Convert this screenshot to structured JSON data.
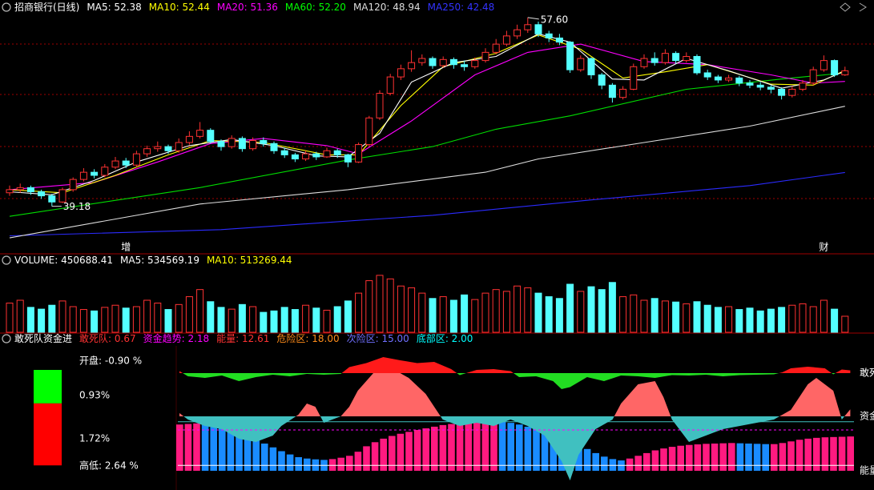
{
  "chart_data": [
    {
      "type": "candlestick",
      "header": [
        {
          "text": "招商银行(日线)",
          "color": "#ffffff"
        },
        {
          "text": "MA5: 52.38",
          "color": "#ffffff"
        },
        {
          "text": "MA10: 52.44",
          "color": "#ffff00"
        },
        {
          "text": "MA20: 51.36",
          "color": "#ff00ff"
        },
        {
          "text": "MA60: 52.20",
          "color": "#00ff00"
        },
        {
          "text": "MA120: 48.94",
          "color": "#dddddd"
        },
        {
          "text": "MA250: 42.48",
          "color": "#3333ff"
        }
      ],
      "up_color": "#ff3232",
      "down_color": "#54ffff",
      "ylim": [
        34.7,
        57.9
      ],
      "open": [
        40.5,
        40.8,
        41.0,
        40.6,
        40.2,
        39.6,
        40.8,
        41.8,
        42.5,
        42.2,
        43.0,
        43.6,
        43.2,
        44.3,
        44.8,
        45.0,
        44.6,
        45.4,
        46.0,
        46.6,
        45.5,
        45.0,
        45.8,
        44.8,
        45.6,
        45.3,
        44.6,
        44.2,
        43.8,
        44.3,
        44.0,
        44.6,
        44.2,
        43.5,
        45.2,
        47.8,
        50.2,
        51.8,
        52.6,
        53.2,
        53.6,
        52.9,
        53.5,
        53.0,
        52.8,
        53.4,
        54.2,
        55.0,
        55.8,
        56.4,
        56.9,
        56.0,
        55.6,
        55.2,
        52.5,
        53.6,
        52.0,
        51.0,
        49.8,
        50.6,
        52.8,
        53.6,
        53.2,
        54.1,
        53.4,
        53.8,
        52.2,
        51.8,
        51.5,
        51.7,
        51.2,
        51.0,
        50.8,
        50.6,
        50.0,
        50.6,
        51.2,
        52.5,
        53.4,
        52.0
      ],
      "high": [
        41.2,
        41.4,
        41.2,
        40.8,
        40.4,
        41.0,
        42.0,
        42.9,
        42.8,
        43.3,
        44.0,
        43.9,
        44.6,
        45.1,
        45.5,
        45.2,
        45.8,
        46.5,
        47.4,
        46.8,
        45.7,
        46.1,
        46.0,
        45.9,
        45.9,
        45.5,
        44.9,
        44.4,
        44.6,
        44.5,
        44.9,
        44.8,
        44.3,
        45.4,
        48.0,
        50.5,
        52.1,
        53.0,
        54.4,
        54.0,
        53.8,
        53.8,
        53.7,
        53.4,
        53.7,
        54.6,
        55.5,
        56.3,
        56.9,
        57.6,
        57.2,
        56.3,
        56.0,
        55.3,
        53.9,
        53.7,
        52.2,
        51.2,
        50.9,
        53.1,
        54.0,
        54.2,
        54.5,
        54.3,
        54.2,
        54.0,
        52.5,
        52.0,
        52.0,
        51.9,
        51.5,
        51.3,
        51.0,
        50.8,
        50.9,
        51.5,
        52.8,
        53.9,
        53.5,
        52.8
      ],
      "low": [
        40.2,
        40.5,
        40.3,
        39.9,
        39.18,
        39.5,
        40.6,
        41.6,
        41.9,
        42.0,
        42.8,
        42.9,
        43.0,
        44.0,
        44.5,
        44.3,
        44.4,
        45.2,
        45.8,
        45.3,
        44.6,
        44.8,
        44.5,
        44.6,
        45.0,
        44.3,
        43.9,
        43.5,
        43.6,
        43.7,
        43.9,
        43.9,
        43.0,
        43.4,
        45.0,
        47.6,
        50.0,
        51.5,
        52.3,
        52.9,
        52.6,
        52.7,
        52.6,
        52.4,
        52.6,
        53.2,
        54.0,
        54.8,
        55.5,
        56.1,
        55.7,
        55.2,
        54.9,
        52.2,
        52.3,
        51.6,
        50.6,
        49.3,
        49.6,
        50.5,
        52.6,
        52.9,
        53.0,
        53.1,
        53.2,
        52.0,
        51.5,
        51.2,
        51.3,
        50.9,
        50.7,
        50.5,
        50.2,
        49.6,
        49.8,
        50.4,
        51.0,
        52.3,
        51.8,
        51.9
      ],
      "close": [
        40.8,
        41.0,
        40.6,
        40.2,
        39.6,
        40.8,
        41.8,
        42.5,
        42.2,
        43.0,
        43.6,
        43.2,
        44.3,
        44.8,
        45.0,
        44.6,
        45.4,
        46.0,
        46.6,
        45.5,
        45.0,
        45.8,
        44.8,
        45.6,
        45.3,
        44.6,
        44.2,
        43.8,
        44.3,
        44.0,
        44.6,
        44.2,
        43.5,
        45.2,
        47.8,
        50.2,
        51.8,
        52.6,
        53.2,
        53.6,
        52.9,
        53.5,
        53.0,
        52.8,
        53.4,
        54.2,
        55.0,
        55.8,
        56.4,
        56.9,
        56.0,
        55.6,
        55.2,
        52.5,
        53.6,
        52.0,
        51.0,
        49.8,
        50.6,
        52.8,
        53.6,
        53.2,
        54.1,
        53.4,
        53.8,
        52.2,
        51.8,
        51.5,
        51.7,
        51.2,
        51.0,
        50.8,
        50.6,
        50.0,
        50.6,
        51.2,
        52.5,
        53.4,
        52.0,
        52.4
      ],
      "max_label": {
        "value": 57.6,
        "label": "57.60"
      },
      "min_label": {
        "value": 39.18,
        "label": "39.18"
      },
      "events": [
        {
          "text": "增",
          "index": 11
        },
        {
          "text": "财",
          "index": 77
        }
      ],
      "series": [
        {
          "name": "MA250",
          "color": "#2b2bff",
          "x": [
            0,
            20,
            40,
            55,
            70,
            79
          ],
          "values": [
            36.3,
            36.9,
            38.3,
            39.8,
            41.2,
            42.48
          ]
        },
        {
          "name": "MA120",
          "color": "#dddddd",
          "x": [
            0,
            18,
            32,
            45,
            50,
            60,
            70,
            79
          ],
          "values": [
            36.1,
            39.4,
            40.8,
            42.5,
            43.8,
            45.4,
            47.0,
            48.94
          ]
        },
        {
          "name": "MA60",
          "color": "#00dd00",
          "x": [
            0,
            18,
            32,
            40,
            46,
            53,
            64,
            73,
            79
          ],
          "values": [
            38.2,
            41.0,
            43.7,
            45.0,
            46.7,
            48.0,
            50.6,
            51.6,
            52.2
          ]
        },
        {
          "name": "MA20",
          "color": "#ff00ff",
          "x": [
            0,
            8,
            14,
            19,
            24,
            30,
            33,
            38,
            44,
            49,
            54,
            60,
            66,
            72,
            76,
            79
          ],
          "values": [
            40.8,
            41.5,
            43.5,
            45.3,
            45.8,
            45.1,
            44.3,
            47.5,
            52.0,
            54.2,
            55.0,
            53.3,
            53.0,
            52.0,
            51.2,
            51.36
          ]
        },
        {
          "name": "MA10",
          "color": "#ffff00",
          "x": [
            0,
            5,
            10,
            15,
            19,
            24,
            30,
            33,
            37,
            41,
            46,
            50,
            54,
            58,
            62,
            66,
            72,
            76,
            79
          ],
          "values": [
            40.8,
            40.5,
            42.2,
            44.2,
            45.6,
            45.4,
            44.2,
            44.2,
            49.0,
            52.8,
            54.1,
            55.9,
            54.5,
            51.7,
            52.3,
            53.0,
            51.1,
            51.0,
            52.44
          ]
        },
        {
          "name": "MA5",
          "color": "#ffffff",
          "x": [
            0,
            4,
            8,
            12,
            17,
            21,
            25,
            29,
            32,
            35,
            38,
            42,
            46,
            50,
            53,
            57,
            60,
            64,
            68,
            73,
            77,
            79
          ],
          "values": [
            40.6,
            40.3,
            41.7,
            43.5,
            45.1,
            45.7,
            45.1,
            44.1,
            44.0,
            46.3,
            51.3,
            53.2,
            53.8,
            56.0,
            55.2,
            51.6,
            51.5,
            53.6,
            52.4,
            50.7,
            51.5,
            52.38
          ]
        }
      ]
    },
    {
      "type": "bar",
      "header": [
        {
          "text": "VOLUME: 450688.41",
          "color": "#ffffff"
        },
        {
          "text": "MA5: 534569.19",
          "color": "#ffffff"
        },
        {
          "text": "MA10: 513269.44",
          "color": "#ffff00"
        }
      ],
      "ylim": [
        0,
        1800000
      ],
      "values": [
        820000,
        900000,
        700000,
        650000,
        760000,
        880000,
        720000,
        640000,
        600000,
        700000,
        760000,
        680000,
        720000,
        900000,
        820000,
        640000,
        780000,
        1000000,
        1200000,
        860000,
        700000,
        650000,
        780000,
        720000,
        560000,
        600000,
        700000,
        640000,
        760000,
        680000,
        620000,
        720000,
        880000,
        1100000,
        1450000,
        1600000,
        1500000,
        1300000,
        1250000,
        1100000,
        950000,
        1000000,
        900000,
        1050000,
        920000,
        1100000,
        1200000,
        1150000,
        1300000,
        1250000,
        1100000,
        1000000,
        950000,
        1350000,
        1150000,
        1280000,
        1200000,
        1400000,
        1000000,
        1050000,
        900000,
        950000,
        880000,
        850000,
        800000,
        860000,
        760000,
        700000,
        720000,
        640000,
        680000,
        600000,
        650000,
        700000,
        760000,
        800000,
        720000,
        900000,
        650000,
        450688.41
      ]
    },
    {
      "type": "area",
      "header": [
        {
          "text": "敢死队资金进",
          "color": "#ffffff"
        },
        {
          "text": "敢死队: 0.67",
          "color": "#ff3232"
        },
        {
          "text": "资金趋势: 2.18",
          "color": "#ff00ff"
        },
        {
          "text": "能量: 12.61",
          "color": "#ff3232"
        },
        {
          "text": "危险区: 18.00",
          "color": "#ff8c1a"
        },
        {
          "text": "次险区: 15.00",
          "color": "#6f6fff"
        },
        {
          "text": "底部区: 2.00",
          "color": "#00ffff"
        }
      ],
      "levels": [
        {
          "value": 18,
          "color": "#40c0c0"
        },
        {
          "value": 15,
          "color": "#ff00ff"
        },
        {
          "value": 2,
          "color": "#ffffff"
        }
      ],
      "side_labels": [
        {
          "text": "敢死",
          "color": "#ff3232"
        },
        {
          "text": "资金",
          "color": "#ff00ff"
        },
        {
          "text": "能量",
          "color": "#ff3232"
        }
      ],
      "gansidui": {
        "pos_color": "#ff1a1a",
        "neg_color": "#22dd22",
        "x": [
          0,
          1,
          3,
          5,
          7,
          9,
          11,
          13,
          15,
          17,
          19,
          20,
          22,
          24,
          26,
          28,
          30,
          32,
          33,
          35,
          37,
          39,
          40,
          42,
          44,
          45,
          46,
          48,
          50,
          52,
          54,
          56,
          58,
          60,
          62,
          64,
          66,
          68,
          70,
          71,
          72,
          74,
          76,
          77,
          78,
          79
        ],
        "values": [
          0.5,
          -0.8,
          -1.2,
          -0.6,
          -2.0,
          -1.0,
          -0.4,
          -0.8,
          -0.2,
          -0.4,
          -0.2,
          1.5,
          2.5,
          4.0,
          3.2,
          2.5,
          2.8,
          1.0,
          -0.5,
          0.8,
          1.0,
          0.5,
          -1.0,
          -0.8,
          -2.0,
          -4.0,
          -3.5,
          -1.0,
          -2.0,
          -0.6,
          -0.8,
          -1.2,
          -0.5,
          -0.6,
          -0.4,
          -0.8,
          -0.5,
          -0.4,
          -0.3,
          0.2,
          1.2,
          1.6,
          1.2,
          -0.3,
          0.9,
          0.67
        ]
      },
      "trend": {
        "pos_color": "#ff6666",
        "neg_color": "#40c0c0",
        "x": [
          0,
          1,
          3,
          5,
          7,
          9,
          11,
          12,
          14,
          15,
          16,
          17,
          19,
          20,
          21,
          23,
          25,
          27,
          29,
          31,
          33,
          35,
          37,
          39,
          41,
          43,
          45,
          46,
          47,
          49,
          51,
          52,
          54,
          56,
          57,
          58,
          60,
          62,
          64,
          66,
          68,
          70,
          72,
          74,
          75,
          77,
          78,
          79
        ],
        "values": [
          1,
          -1,
          -3,
          -4,
          -7,
          -8,
          -6,
          -3,
          0.5,
          4,
          3,
          -2,
          0,
          3,
          8,
          14,
          15,
          12,
          7,
          -1,
          -3,
          -2,
          -3,
          -1,
          -3,
          -6,
          -14,
          -20,
          -12,
          -4,
          -1,
          4,
          10,
          11,
          6,
          -1,
          -8,
          -6,
          -4,
          -3,
          -2,
          -1,
          2,
          10,
          12,
          8,
          -1,
          2.18
        ]
      },
      "energy": {
        "up_color": "#ff1a80",
        "down_color": "#1a8cff",
        "values": [
          17,
          17.2,
          17.4,
          17,
          16.5,
          15.8,
          15,
          14.2,
          13,
          11.5,
          10,
          8.6,
          7.2,
          6,
          5,
          4.5,
          4.2,
          4,
          4.3,
          4.8,
          5.5,
          7,
          9,
          10.5,
          11.8,
          12.8,
          13.6,
          14.3,
          15,
          15.6,
          16.2,
          16.8,
          17.2,
          17.6,
          17.9,
          18.1,
          18.2,
          18.3,
          18.1,
          17.6,
          17,
          16.2,
          15.4,
          14.6,
          13.6,
          12.5,
          11,
          9.5,
          8,
          6.5,
          5.2,
          4.3,
          3.8,
          4.5,
          5.5,
          6.5,
          7.5,
          8.2,
          8.8,
          9.2,
          9.5,
          9.7,
          9.9,
          10,
          10.1,
          10.2,
          10.1,
          10,
          9.9,
          9.8,
          9.8,
          10.2,
          10.8,
          11.4,
          11.8,
          12.1,
          12.3,
          12.4,
          12.5,
          12.61
        ]
      },
      "side_panel": {
        "open_text": "开盘: -0.90 %",
        "range_text": "高低: 2.64 %",
        "upper": {
          "value": 0.93,
          "label": "0.93%",
          "color": "#00ff00",
          "text_color": "#ff3232"
        },
        "lower": {
          "value": 1.72,
          "label": "1.72%",
          "color": "#ff0000",
          "text_color": "#00ff00"
        }
      }
    }
  ]
}
